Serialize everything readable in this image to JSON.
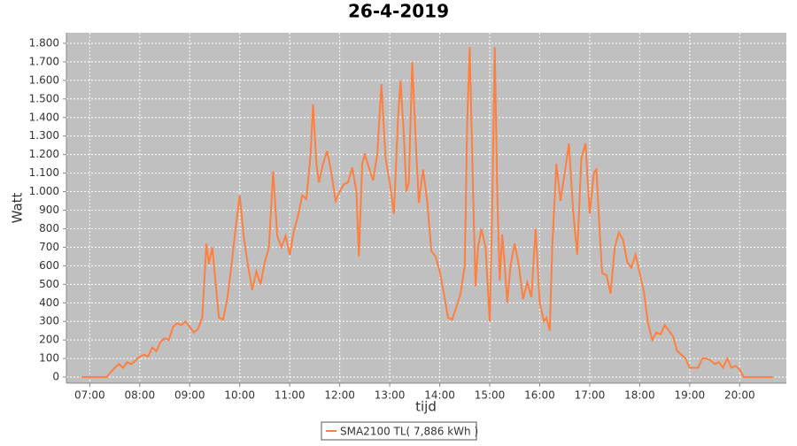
{
  "chart_data": {
    "type": "line",
    "title": "26-4-2019",
    "x_label": "tijd",
    "y_label": "Watt",
    "grid": true,
    "xlim": [
      "06:32",
      "20:56"
    ],
    "xticks": [
      "07:00",
      "08:00",
      "09:00",
      "10:00",
      "11:00",
      "12:00",
      "13:00",
      "14:00",
      "15:00",
      "16:00",
      "17:00",
      "18:00",
      "19:00",
      "20:00"
    ],
    "ylim": [
      -33,
      1857
    ],
    "yticks": [
      0,
      100,
      200,
      300,
      400,
      500,
      600,
      700,
      800,
      900,
      {
        "value": 1000,
        "label": "1.000"
      },
      {
        "value": 1100,
        "label": "1.100"
      },
      {
        "value": 1200,
        "label": "1.200"
      },
      {
        "value": 1300,
        "label": "1.300"
      },
      {
        "value": 1400,
        "label": "1.400"
      },
      {
        "value": 1500,
        "label": "1.500"
      },
      {
        "value": 1600,
        "label": "1.600"
      },
      {
        "value": 1700,
        "label": "1.700"
      },
      {
        "value": 1800,
        "label": "1.800"
      }
    ],
    "x": [
      "06:50",
      "07:00",
      "07:10",
      "07:20",
      "07:30",
      "07:35",
      "07:40",
      "07:45",
      "07:50",
      "08:00",
      "08:05",
      "08:10",
      "08:15",
      "08:20",
      "08:25",
      "08:30",
      "08:35",
      "08:40",
      "08:45",
      "08:50",
      "08:55",
      "09:00",
      "09:05",
      "09:10",
      "09:15",
      "09:20",
      "09:23",
      "09:27",
      "09:30",
      "09:35",
      "09:40",
      "09:45",
      "09:50",
      "09:55",
      "10:00",
      "10:05",
      "10:10",
      "10:15",
      "10:20",
      "10:25",
      "10:30",
      "10:35",
      "10:40",
      "10:45",
      "10:50",
      "10:55",
      "11:00",
      "11:05",
      "11:10",
      "11:15",
      "11:20",
      "11:25",
      "11:28",
      "11:32",
      "11:35",
      "11:40",
      "11:45",
      "11:50",
      "11:55",
      "12:00",
      "12:05",
      "12:10",
      "12:15",
      "12:20",
      "12:23",
      "12:27",
      "12:30",
      "12:35",
      "12:40",
      "12:45",
      "12:50",
      "12:55",
      "13:00",
      "13:05",
      "13:10",
      "13:13",
      "13:17",
      "13:20",
      "13:23",
      "13:27",
      "13:32",
      "13:35",
      "13:40",
      "13:45",
      "13:50",
      "13:55",
      "14:00",
      "14:05",
      "14:10",
      "14:15",
      "14:20",
      "14:25",
      "14:30",
      "14:33",
      "14:36",
      "14:40",
      "14:43",
      "14:46",
      "14:50",
      "14:55",
      "15:00",
      "15:03",
      "15:06",
      "15:09",
      "15:12",
      "15:15",
      "15:18",
      "15:21",
      "15:25",
      "15:30",
      "15:35",
      "15:40",
      "15:45",
      "15:50",
      "15:55",
      "16:00",
      "16:05",
      "16:08",
      "16:12",
      "16:15",
      "16:20",
      "16:25",
      "16:30",
      "16:35",
      "16:40",
      "16:45",
      "16:50",
      "16:55",
      "17:00",
      "17:05",
      "17:08",
      "17:12",
      "17:15",
      "17:20",
      "17:25",
      "17:30",
      "17:35",
      "17:40",
      "17:45",
      "17:50",
      "17:55",
      "18:00",
      "18:05",
      "18:10",
      "18:15",
      "18:20",
      "18:25",
      "18:30",
      "18:35",
      "18:40",
      "18:45",
      "18:50",
      "18:55",
      "19:00",
      "19:10",
      "19:15",
      "19:20",
      "19:25",
      "19:30",
      "19:35",
      "19:40",
      "19:45",
      "19:50",
      "19:55",
      "20:00",
      "20:05",
      "20:20",
      "20:40"
    ],
    "series": [
      {
        "name": "SMA2100 TL( 7,886 kWh )",
        "color": "#ff7f3f",
        "values": [
          0,
          0,
          0,
          0,
          50,
          70,
          50,
          80,
          70,
          110,
          120,
          110,
          160,
          140,
          190,
          210,
          200,
          270,
          290,
          280,
          300,
          270,
          240,
          260,
          320,
          720,
          610,
          700,
          560,
          320,
          310,
          420,
          600,
          800,
          980,
          750,
          600,
          470,
          570,
          500,
          620,
          700,
          1110,
          760,
          700,
          760,
          660,
          790,
          870,
          980,
          960,
          1200,
          1470,
          1150,
          1050,
          1150,
          1220,
          1100,
          950,
          1000,
          1040,
          1050,
          1130,
          1000,
          650,
          1150,
          1200,
          1130,
          1060,
          1200,
          1580,
          1180,
          1050,
          880,
          1400,
          1600,
          1300,
          1000,
          1050,
          1700,
          1200,
          940,
          1120,
          950,
          680,
          650,
          570,
          450,
          320,
          310,
          380,
          450,
          600,
          1370,
          1780,
          1000,
          490,
          700,
          800,
          700,
          300,
          900,
          1780,
          1000,
          520,
          770,
          600,
          400,
          600,
          720,
          600,
          420,
          510,
          430,
          800,
          400,
          300,
          320,
          250,
          700,
          1150,
          950,
          1100,
          1260,
          900,
          660,
          1180,
          1260,
          880,
          1100,
          1120,
          780,
          560,
          550,
          450,
          700,
          780,
          740,
          620,
          590,
          660,
          560,
          460,
          290,
          200,
          240,
          230,
          280,
          250,
          220,
          140,
          120,
          100,
          50,
          50,
          100,
          100,
          90,
          70,
          80,
          50,
          100,
          50,
          60,
          40,
          0,
          0,
          0
        ]
      }
    ]
  }
}
